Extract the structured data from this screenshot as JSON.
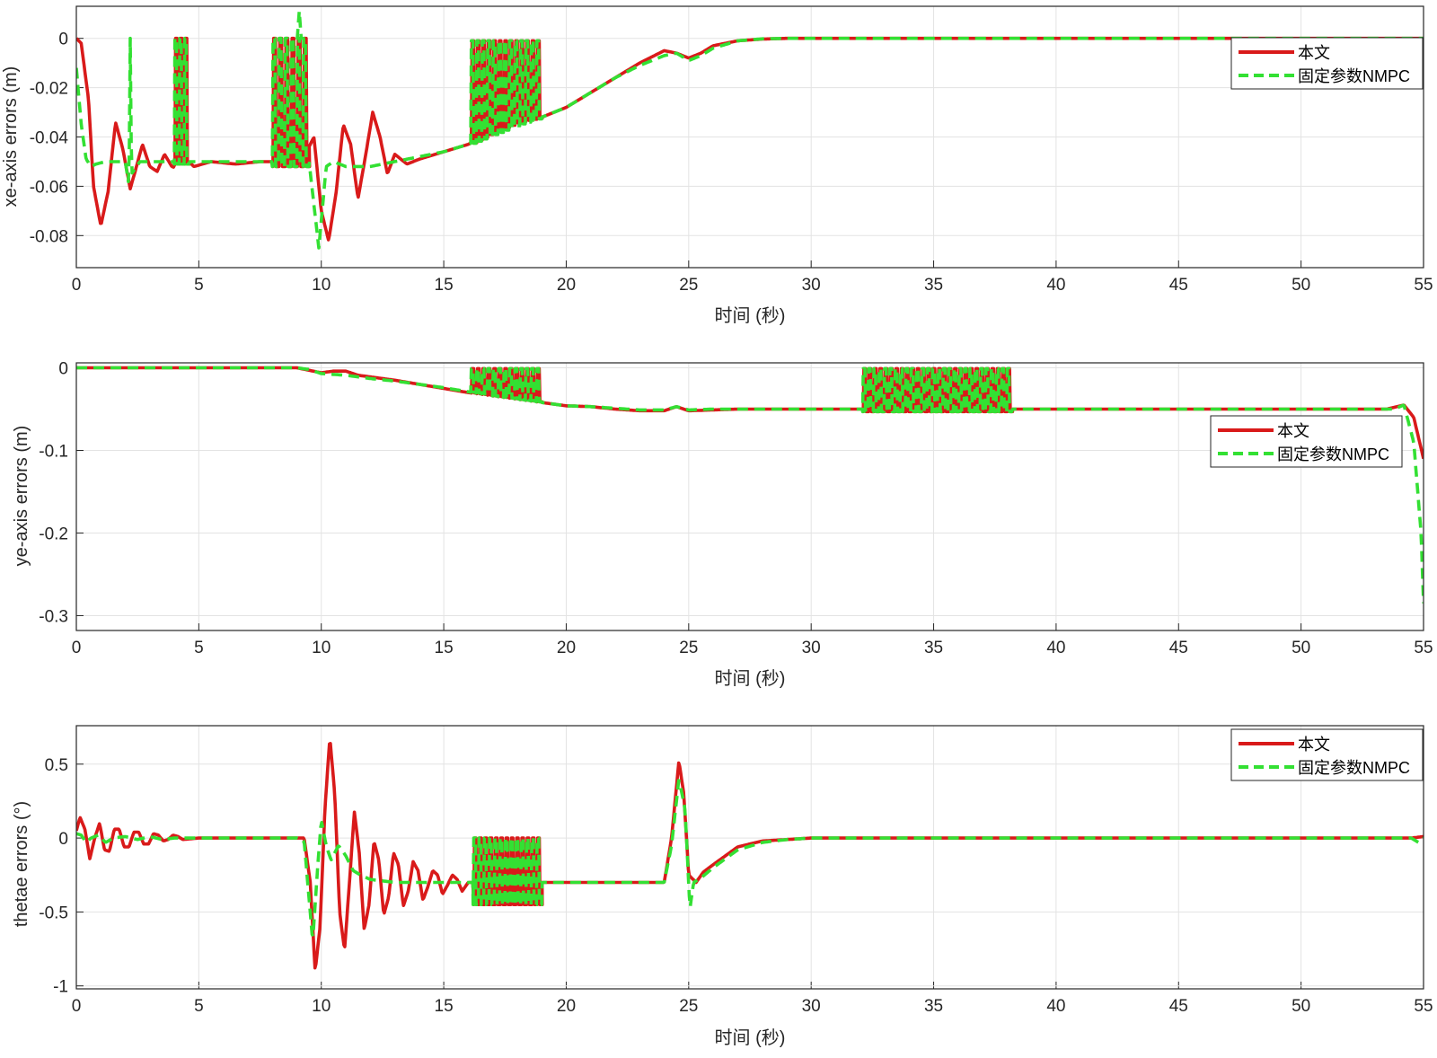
{
  "colors": {
    "series1": "#d91a1a",
    "series2": "#33e033",
    "grid": "#e3e3e3",
    "axis": "#262626"
  },
  "chart_data": [
    {
      "type": "line",
      "xlabel": "时间 (秒)",
      "ylabel": "xe-axis errors (m)",
      "xlim": [
        0,
        55
      ],
      "ylim": [
        -0.093,
        0.013
      ],
      "xticks": [
        "0",
        "5",
        "10",
        "15",
        "20",
        "25",
        "30",
        "35",
        "40",
        "45",
        "50",
        "55"
      ],
      "yticks": [
        "0",
        "-0.02",
        "-0.04",
        "-0.06",
        "-0.08"
      ],
      "grid": true,
      "legend_position": "top-right",
      "series": [
        {
          "name": "本文",
          "style": "solid",
          "x": [
            0,
            0.2,
            0.5,
            0.7,
            1.0,
            1.3,
            1.6,
            1.9,
            2.2,
            2.4,
            2.7,
            3.0,
            3.3,
            3.6,
            3.9,
            4.2,
            4.5,
            4.8,
            5.5,
            6.5,
            7.5,
            8.2,
            8.8,
            9.3,
            9.7,
            10.0,
            10.3,
            10.6,
            10.9,
            11.2,
            11.5,
            11.8,
            12.1,
            12.4,
            12.7,
            13.0,
            13.5,
            14.0,
            15.0,
            16.0,
            17.0,
            18.0,
            19.0,
            20.0,
            21.0,
            22.0,
            23.0,
            24.0,
            24.5,
            25.0,
            25.5,
            26.0,
            27.0,
            28.0,
            29.0,
            30.0,
            35.0,
            40.0,
            45.0,
            50.0,
            55.0
          ],
          "y": [
            0,
            -0.002,
            -0.025,
            -0.06,
            -0.076,
            -0.062,
            -0.034,
            -0.045,
            -0.061,
            -0.054,
            -0.043,
            -0.052,
            -0.054,
            -0.047,
            -0.052,
            -0.053,
            -0.049,
            -0.052,
            -0.05,
            -0.051,
            -0.05,
            -0.05,
            -0.051,
            -0.048,
            -0.04,
            -0.07,
            -0.082,
            -0.063,
            -0.035,
            -0.043,
            -0.065,
            -0.048,
            -0.03,
            -0.04,
            -0.055,
            -0.047,
            -0.051,
            -0.049,
            -0.046,
            -0.043,
            -0.038,
            -0.034,
            -0.032,
            -0.028,
            -0.022,
            -0.016,
            -0.01,
            -0.005,
            -0.006,
            -0.008,
            -0.006,
            -0.003,
            -0.001,
            -0.0003,
            0,
            0,
            0,
            0,
            0,
            0,
            0
          ]
        },
        {
          "name": "固定参数NMPC",
          "style": "dashed",
          "x": [
            0,
            0.2,
            0.4,
            0.6,
            0.8,
            1.2,
            1.6,
            2.0,
            2.15,
            2.2,
            2.25,
            2.6,
            3.0,
            4.0,
            5.0,
            6.0,
            7.0,
            8.0,
            9.0,
            9.5,
            9.9,
            10.2,
            10.5,
            11.0,
            12.0,
            13.0,
            14.0,
            15.0,
            16.0,
            17.0,
            18.0,
            19.0,
            20.0,
            21.0,
            22.0,
            23.0,
            24.0,
            24.5,
            25.0,
            25.5,
            26.0,
            27.0,
            28.0,
            29.0,
            30.0,
            35.0,
            40.0,
            45.0,
            50.0,
            55.0
          ],
          "y": [
            -0.012,
            -0.035,
            -0.049,
            -0.052,
            -0.051,
            -0.05,
            -0.05,
            -0.05,
            -0.06,
            0,
            -0.055,
            -0.05,
            -0.05,
            -0.05,
            -0.05,
            -0.05,
            -0.05,
            -0.05,
            -0.05,
            -0.05,
            -0.085,
            -0.052,
            -0.05,
            -0.052,
            -0.052,
            -0.05,
            -0.048,
            -0.046,
            -0.043,
            -0.039,
            -0.035,
            -0.032,
            -0.028,
            -0.022,
            -0.016,
            -0.011,
            -0.007,
            -0.006,
            -0.009,
            -0.007,
            -0.004,
            -0.001,
            -0.0002,
            0,
            0,
            0,
            0,
            0,
            0,
            0
          ]
        }
      ],
      "chatter_bursts": [
        {
          "start": 4.0,
          "end": 4.6,
          "count": 3,
          "period": 0.2,
          "top": 0,
          "bottom": -0.051
        },
        {
          "start": 8.0,
          "end": 9.5,
          "count": 6,
          "period": 0.22,
          "top": 0,
          "bottom": -0.052
        },
        {
          "start": 16.1,
          "end": 19.0,
          "count": 13,
          "period": 0.22,
          "top": -0.001,
          "bottom": "base"
        }
      ],
      "spikes": [
        {
          "x": 9.1,
          "y": 0.011,
          "series": 1
        }
      ]
    },
    {
      "type": "line",
      "xlabel": "时间 (秒)",
      "ylabel": "ye-axis errors (m)",
      "xlim": [
        0,
        55
      ],
      "ylim": [
        -0.318,
        0.006
      ],
      "xticks": [
        "0",
        "5",
        "10",
        "15",
        "20",
        "25",
        "30",
        "35",
        "40",
        "45",
        "50",
        "55"
      ],
      "yticks": [
        "0",
        "-0.1",
        "-0.2",
        "-0.3"
      ],
      "grid": true,
      "legend_position": "right",
      "series": [
        {
          "name": "本文",
          "style": "solid",
          "x": [
            0,
            5,
            9.0,
            9.5,
            10.0,
            10.5,
            11.0,
            11.5,
            12.0,
            13.0,
            14.0,
            15.0,
            16.0,
            17.0,
            18.0,
            19.0,
            20.0,
            21.0,
            22.0,
            23.0,
            24.0,
            24.5,
            25.0,
            26.0,
            27.0,
            30.0,
            35.0,
            40.0,
            45.0,
            50.0,
            53.5,
            54.2,
            54.6,
            55.0
          ],
          "y": [
            0,
            0,
            0,
            -0.003,
            -0.006,
            -0.004,
            -0.004,
            -0.009,
            -0.011,
            -0.015,
            -0.02,
            -0.025,
            -0.03,
            -0.034,
            -0.038,
            -0.042,
            -0.046,
            -0.047,
            -0.05,
            -0.052,
            -0.052,
            -0.047,
            -0.052,
            -0.051,
            -0.05,
            -0.05,
            -0.05,
            -0.05,
            -0.05,
            -0.05,
            -0.05,
            -0.045,
            -0.06,
            -0.11
          ]
        },
        {
          "name": "固定参数NMPC",
          "style": "dashed",
          "x": [
            0,
            5,
            9.0,
            9.5,
            10.0,
            10.5,
            11.0,
            12.0,
            13.0,
            14.0,
            15.0,
            16.0,
            17.0,
            18.0,
            19.0,
            20.0,
            21.0,
            22.0,
            23.0,
            24.0,
            24.5,
            25.0,
            26.0,
            27.0,
            30.0,
            35.0,
            40.0,
            45.0,
            50.0,
            53.8,
            54.2,
            54.6,
            54.9,
            55.0
          ],
          "y": [
            0,
            0,
            0,
            -0.002,
            -0.007,
            -0.008,
            -0.009,
            -0.013,
            -0.016,
            -0.02,
            -0.024,
            -0.029,
            -0.034,
            -0.038,
            -0.042,
            -0.046,
            -0.047,
            -0.049,
            -0.051,
            -0.051,
            -0.047,
            -0.051,
            -0.05,
            -0.05,
            -0.05,
            -0.05,
            -0.05,
            -0.05,
            -0.05,
            -0.05,
            -0.045,
            -0.09,
            -0.2,
            -0.285
          ]
        }
      ],
      "chatter_bursts": [
        {
          "start": 16.1,
          "end": 19.0,
          "count": 13,
          "period": 0.22,
          "top": -0.001,
          "bottom": "base"
        },
        {
          "start": 32.1,
          "end": 38.2,
          "count": 28,
          "period": 0.22,
          "top": -0.001,
          "bottom": -0.053
        }
      ],
      "spikes": []
    },
    {
      "type": "line",
      "xlabel": "时间 (秒)",
      "ylabel": "thetae errors (°)",
      "xlim": [
        0,
        55
      ],
      "ylim": [
        -1.02,
        0.76
      ],
      "xticks": [
        "0",
        "5",
        "10",
        "15",
        "20",
        "25",
        "30",
        "35",
        "40",
        "45",
        "50",
        "55"
      ],
      "yticks": [
        "0.5",
        "0",
        "-0.5",
        "-1"
      ],
      "grid": true,
      "legend_position": "top-right",
      "series": [
        {
          "name": "本文",
          "style": "solid",
          "x": [
            0,
            0.15,
            0.35,
            0.55,
            0.75,
            0.95,
            1.15,
            1.35,
            1.55,
            1.75,
            1.95,
            2.15,
            2.35,
            2.55,
            2.75,
            2.95,
            3.15,
            3.35,
            3.55,
            3.75,
            3.95,
            4.15,
            4.35,
            5.0,
            6.0,
            7.0,
            8.0,
            9.0,
            9.3,
            9.55,
            9.75,
            9.95,
            10.15,
            10.35,
            10.55,
            10.75,
            10.95,
            11.15,
            11.35,
            11.55,
            11.75,
            11.95,
            12.15,
            12.35,
            12.55,
            12.75,
            12.95,
            13.15,
            13.35,
            13.55,
            13.75,
            13.95,
            14.15,
            14.35,
            14.55,
            14.75,
            14.95,
            15.15,
            15.35,
            15.55,
            15.75,
            16.0,
            17.0,
            18.0,
            19.0,
            20.0,
            21.0,
            22.0,
            23.0,
            24.0,
            24.3,
            24.6,
            24.8,
            25.0,
            25.3,
            25.6,
            26.0,
            26.5,
            27.0,
            28.0,
            29.0,
            30.0,
            35.0,
            40.0,
            45.0,
            50.0,
            54.5,
            55.0
          ],
          "y": [
            0.05,
            0.14,
            0.06,
            -0.14,
            0.0,
            0.1,
            -0.08,
            -0.09,
            0.06,
            0.06,
            -0.06,
            -0.06,
            0.04,
            0.04,
            -0.04,
            -0.04,
            0.03,
            0.02,
            -0.02,
            -0.01,
            0.02,
            0.01,
            -0.01,
            0,
            0,
            0,
            0,
            0,
            0,
            -0.3,
            -0.9,
            -0.6,
            0.2,
            0.68,
            0.3,
            -0.5,
            -0.76,
            -0.3,
            0.18,
            -0.1,
            -0.62,
            -0.45,
            -0.02,
            -0.15,
            -0.52,
            -0.4,
            -0.1,
            -0.18,
            -0.46,
            -0.36,
            -0.16,
            -0.22,
            -0.42,
            -0.33,
            -0.22,
            -0.25,
            -0.38,
            -0.32,
            -0.25,
            -0.28,
            -0.36,
            -0.3,
            -0.3,
            -0.3,
            -0.3,
            -0.3,
            -0.3,
            -0.3,
            -0.3,
            -0.3,
            0.0,
            0.52,
            0.3,
            -0.25,
            -0.3,
            -0.23,
            -0.18,
            -0.12,
            -0.06,
            -0.02,
            -0.01,
            0,
            0,
            0,
            0,
            0,
            0,
            0.01
          ]
        },
        {
          "name": "固定参数NMPC",
          "style": "dashed",
          "x": [
            0,
            0.2,
            0.4,
            0.6,
            0.9,
            1.2,
            1.5,
            2.0,
            2.5,
            3.0,
            3.5,
            4.0,
            5.0,
            6.0,
            7.0,
            8.0,
            9.0,
            9.3,
            9.65,
            9.85,
            10.0,
            10.2,
            10.4,
            10.7,
            11.0,
            11.3,
            11.6,
            12.0,
            13.0,
            14.0,
            15.0,
            16.0,
            17.0,
            18.0,
            19.0,
            20.0,
            21.0,
            22.0,
            23.0,
            24.0,
            24.3,
            24.6,
            24.85,
            25.05,
            25.2,
            25.5,
            26.0,
            26.5,
            27.0,
            28.0,
            29.0,
            30.0,
            35.0,
            40.0,
            45.0,
            50.0,
            54.5,
            54.8,
            55.0
          ],
          "y": [
            0.03,
            0.02,
            -0.03,
            0.0,
            0.02,
            -0.03,
            0.0,
            0.01,
            -0.01,
            0.01,
            -0.01,
            0.0,
            0,
            0,
            0,
            0,
            0,
            -0.02,
            -0.7,
            -0.2,
            0.12,
            -0.05,
            -0.15,
            -0.05,
            -0.12,
            -0.22,
            -0.25,
            -0.28,
            -0.3,
            -0.3,
            -0.3,
            -0.3,
            -0.3,
            -0.3,
            -0.3,
            -0.3,
            -0.3,
            -0.3,
            -0.3,
            -0.3,
            -0.05,
            0.4,
            0.2,
            -0.48,
            -0.3,
            -0.27,
            -0.2,
            -0.14,
            -0.08,
            -0.03,
            -0.01,
            0,
            0,
            0,
            0,
            0,
            0,
            -0.03,
            0.0
          ]
        }
      ],
      "chatter_bursts": [
        {
          "start": 16.2,
          "end": 19.0,
          "count": 13,
          "period": 0.22,
          "top": 0.0,
          "bottom": -0.45
        }
      ],
      "spikes": []
    }
  ]
}
